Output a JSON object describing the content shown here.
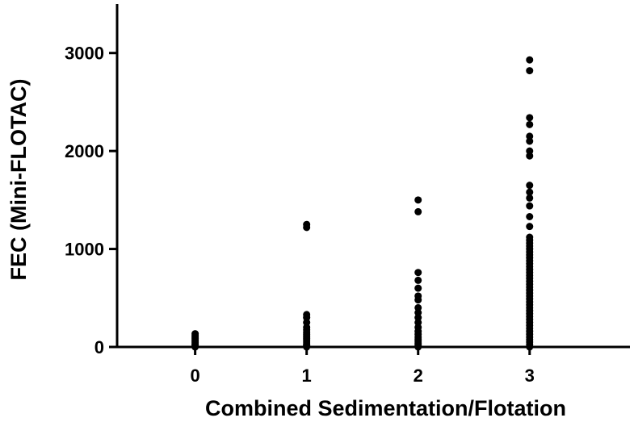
{
  "chart_data": {
    "type": "scatter",
    "title": "",
    "xlabel": "Combined Sedimentation/Flotation",
    "ylabel": "FEC (Mini-FLOTAC)",
    "x_ticks": [
      "0",
      "1",
      "2",
      "3"
    ],
    "y_ticks": [
      "0",
      "1000",
      "2000",
      "3000"
    ],
    "xlim": [
      -0.7,
      3.9
    ],
    "ylim": [
      0,
      3500
    ],
    "grid": false,
    "legend": "none",
    "marker_color": "#000000",
    "series": [
      {
        "points": [
          {
            "x": 0,
            "y": 0
          },
          {
            "x": 0,
            "y": 10
          },
          {
            "x": 0,
            "y": 20
          },
          {
            "x": 0,
            "y": 30
          },
          {
            "x": 0,
            "y": 45
          },
          {
            "x": 0,
            "y": 60
          },
          {
            "x": 0,
            "y": 75
          },
          {
            "x": 0,
            "y": 90
          },
          {
            "x": 0,
            "y": 105
          },
          {
            "x": 0,
            "y": 120
          },
          {
            "x": 0,
            "y": 135
          },
          {
            "x": 1,
            "y": 0
          },
          {
            "x": 1,
            "y": 15
          },
          {
            "x": 1,
            "y": 30
          },
          {
            "x": 1,
            "y": 50
          },
          {
            "x": 1,
            "y": 70
          },
          {
            "x": 1,
            "y": 90
          },
          {
            "x": 1,
            "y": 110
          },
          {
            "x": 1,
            "y": 130
          },
          {
            "x": 1,
            "y": 150
          },
          {
            "x": 1,
            "y": 175
          },
          {
            "x": 1,
            "y": 200
          },
          {
            "x": 1,
            "y": 250
          },
          {
            "x": 1,
            "y": 300
          },
          {
            "x": 1,
            "y": 330
          },
          {
            "x": 1,
            "y": 1220
          },
          {
            "x": 1,
            "y": 1250
          },
          {
            "x": 2,
            "y": 0
          },
          {
            "x": 2,
            "y": 20
          },
          {
            "x": 2,
            "y": 40
          },
          {
            "x": 2,
            "y": 60
          },
          {
            "x": 2,
            "y": 80
          },
          {
            "x": 2,
            "y": 100
          },
          {
            "x": 2,
            "y": 130
          },
          {
            "x": 2,
            "y": 160
          },
          {
            "x": 2,
            "y": 200
          },
          {
            "x": 2,
            "y": 250
          },
          {
            "x": 2,
            "y": 300
          },
          {
            "x": 2,
            "y": 350
          },
          {
            "x": 2,
            "y": 400
          },
          {
            "x": 2,
            "y": 480
          },
          {
            "x": 2,
            "y": 520
          },
          {
            "x": 2,
            "y": 600
          },
          {
            "x": 2,
            "y": 680
          },
          {
            "x": 2,
            "y": 760
          },
          {
            "x": 2,
            "y": 1380
          },
          {
            "x": 2,
            "y": 1500
          },
          {
            "x": 3,
            "y": 0
          },
          {
            "x": 3,
            "y": 25
          },
          {
            "x": 3,
            "y": 50
          },
          {
            "x": 3,
            "y": 75
          },
          {
            "x": 3,
            "y": 100
          },
          {
            "x": 3,
            "y": 130
          },
          {
            "x": 3,
            "y": 160
          },
          {
            "x": 3,
            "y": 190
          },
          {
            "x": 3,
            "y": 220
          },
          {
            "x": 3,
            "y": 250
          },
          {
            "x": 3,
            "y": 280
          },
          {
            "x": 3,
            "y": 310
          },
          {
            "x": 3,
            "y": 340
          },
          {
            "x": 3,
            "y": 370
          },
          {
            "x": 3,
            "y": 400
          },
          {
            "x": 3,
            "y": 430
          },
          {
            "x": 3,
            "y": 460
          },
          {
            "x": 3,
            "y": 490
          },
          {
            "x": 3,
            "y": 520
          },
          {
            "x": 3,
            "y": 550
          },
          {
            "x": 3,
            "y": 580
          },
          {
            "x": 3,
            "y": 610
          },
          {
            "x": 3,
            "y": 640
          },
          {
            "x": 3,
            "y": 670
          },
          {
            "x": 3,
            "y": 700
          },
          {
            "x": 3,
            "y": 730
          },
          {
            "x": 3,
            "y": 760
          },
          {
            "x": 3,
            "y": 790
          },
          {
            "x": 3,
            "y": 820
          },
          {
            "x": 3,
            "y": 850
          },
          {
            "x": 3,
            "y": 880
          },
          {
            "x": 3,
            "y": 910
          },
          {
            "x": 3,
            "y": 940
          },
          {
            "x": 3,
            "y": 970
          },
          {
            "x": 3,
            "y": 1000
          },
          {
            "x": 3,
            "y": 1030
          },
          {
            "x": 3,
            "y": 1060
          },
          {
            "x": 3,
            "y": 1090
          },
          {
            "x": 3,
            "y": 1120
          },
          {
            "x": 3,
            "y": 1230
          },
          {
            "x": 3,
            "y": 1330
          },
          {
            "x": 3,
            "y": 1440
          },
          {
            "x": 3,
            "y": 1520
          },
          {
            "x": 3,
            "y": 1580
          },
          {
            "x": 3,
            "y": 1650
          },
          {
            "x": 3,
            "y": 1950
          },
          {
            "x": 3,
            "y": 2000
          },
          {
            "x": 3,
            "y": 2100
          },
          {
            "x": 3,
            "y": 2150
          },
          {
            "x": 3,
            "y": 2270
          },
          {
            "x": 3,
            "y": 2340
          },
          {
            "x": 3,
            "y": 2820
          },
          {
            "x": 3,
            "y": 2930
          }
        ]
      }
    ]
  }
}
